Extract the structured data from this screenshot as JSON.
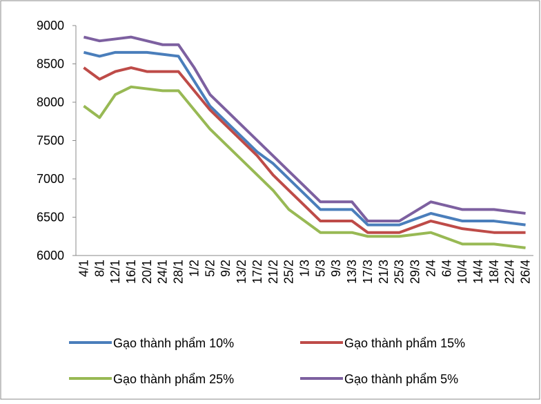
{
  "chart_data": {
    "type": "line",
    "categories": [
      "4/1",
      "8/1",
      "12/1",
      "16/1",
      "20/1",
      "24/1",
      "28/1",
      "1/2",
      "5/2",
      "9/2",
      "13/2",
      "17/2",
      "21/2",
      "25/2",
      "1/3",
      "5/3",
      "9/3",
      "13/3",
      "17/3",
      "21/3",
      "25/3",
      "29/3",
      "2/4",
      "6/4",
      "10/4",
      "14/4",
      "18/4",
      "22/4",
      "26/4"
    ],
    "series": [
      {
        "name": "Gạo thành phẩm 10%",
        "color": "#4a7ebb",
        "values": [
          8650,
          8600,
          8650,
          8650,
          8650,
          8625,
          8600,
          8275,
          7950,
          7750,
          7550,
          7350,
          7200,
          7000,
          6800,
          6600,
          6600,
          6600,
          6400,
          6400,
          6400,
          6475,
          6550,
          6500,
          6450,
          6450,
          6450,
          6425,
          6400
        ]
      },
      {
        "name": "Gạo thành phẩm 15%",
        "color": "#be4b48",
        "values": [
          8450,
          8300,
          8400,
          8450,
          8400,
          8400,
          8400,
          8150,
          7900,
          7700,
          7500,
          7300,
          7050,
          6850,
          6650,
          6450,
          6450,
          6450,
          6300,
          6300,
          6300,
          6375,
          6450,
          6400,
          6350,
          6325,
          6300,
          6300,
          6300
        ]
      },
      {
        "name": "Gạo thành phẩm 25%",
        "color": "#98b954",
        "values": [
          7950,
          7800,
          8100,
          8200,
          8175,
          8150,
          8150,
          7900,
          7650,
          7450,
          7250,
          7050,
          6850,
          6600,
          6450,
          6300,
          6300,
          6300,
          6250,
          6250,
          6250,
          6275,
          6300,
          6225,
          6150,
          6150,
          6150,
          6125,
          6100
        ]
      },
      {
        "name": "Gạo thành phẩm 5%",
        "color": "#7d60a0",
        "values": [
          8850,
          8800,
          8825,
          8850,
          8800,
          8750,
          8750,
          8450,
          8100,
          7900,
          7700,
          7500,
          7300,
          7100,
          6900,
          6700,
          6700,
          6700,
          6450,
          6450,
          6450,
          6575,
          6700,
          6650,
          6600,
          6600,
          6600,
          6575,
          6550
        ]
      }
    ],
    "ylim": [
      6000,
      9000
    ],
    "yticks": [
      6000,
      6500,
      7000,
      7500,
      8000,
      8500,
      9000
    ]
  }
}
